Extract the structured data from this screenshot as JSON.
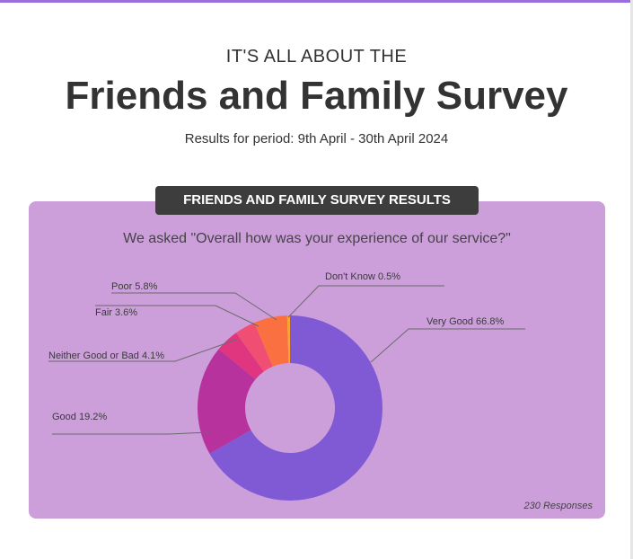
{
  "header": {
    "eyebrow": "IT'S ALL ABOUT THE",
    "title": "Friends and Family Survey",
    "period": "Results for period: 9th April - 30th April 2024"
  },
  "panel": {
    "badge": "FRIENDS AND FAMILY SURVEY RESULTS",
    "question": "We asked \"Overall how was your experience of our service?\"",
    "responses": "230 Responses",
    "background": "#cc9fdb"
  },
  "chart_data": {
    "type": "pie",
    "variant": "donut",
    "categories": [
      "Very Good",
      "Good",
      "Neither Good or Bad",
      "Fair",
      "Poor",
      "Don't Know"
    ],
    "values": [
      66.8,
      19.2,
      4.1,
      3.6,
      5.8,
      0.5
    ],
    "unit": "%",
    "labels": [
      "Very Good 66.8%",
      "Good 19.2%",
      "Neither Good or Bad 4.1%",
      "Fair 3.6%",
      "Poor 5.8%",
      "Don't Know 0.5%"
    ],
    "colors": [
      "#8059d4",
      "#b8329e",
      "#e0357f",
      "#f04f73",
      "#fb7040",
      "#f7a430"
    ],
    "total_responses": 230
  }
}
